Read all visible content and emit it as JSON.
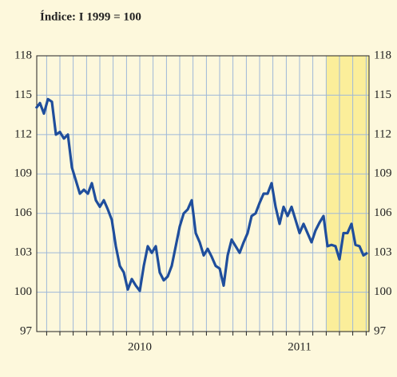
{
  "chart_data": {
    "type": "line",
    "title": "Índice: I 1999 = 100",
    "x": [
      2009.85,
      2009.875,
      2009.9,
      2009.925,
      2009.95,
      2009.975,
      2010.0,
      2010.025,
      2010.05,
      2010.075,
      2010.1,
      2010.125,
      2010.15,
      2010.175,
      2010.2,
      2010.225,
      2010.25,
      2010.275,
      2010.3,
      2010.325,
      2010.35,
      2010.375,
      2010.4,
      2010.425,
      2010.45,
      2010.475,
      2010.5,
      2010.525,
      2010.55,
      2010.575,
      2010.6,
      2010.625,
      2010.65,
      2010.675,
      2010.7,
      2010.725,
      2010.75,
      2010.775,
      2010.8,
      2010.825,
      2010.85,
      2010.875,
      2010.9,
      2010.925,
      2010.95,
      2010.975,
      2011.0,
      2011.025,
      2011.05,
      2011.075,
      2011.1,
      2011.125,
      2011.15,
      2011.175,
      2011.2,
      2011.225,
      2011.25,
      2011.275,
      2011.3,
      2011.325,
      2011.35,
      2011.375,
      2011.4,
      2011.425,
      2011.45,
      2011.475,
      2011.5,
      2011.525,
      2011.55,
      2011.575,
      2011.6,
      2011.625,
      2011.65,
      2011.675,
      2011.7,
      2011.725,
      2011.75,
      2011.775,
      2011.8,
      2011.825,
      2011.85,
      2011.875,
      2011.9,
      2011.925
    ],
    "series": [
      {
        "color": "#1f4e9c",
        "values": [
          114,
          114.4,
          113.6,
          114.7,
          114.5,
          112,
          112.2,
          111.7,
          112,
          109.5,
          108.5,
          107.5,
          107.8,
          107.5,
          108.3,
          107,
          106.5,
          107,
          106.3,
          105.5,
          103.5,
          102,
          101.5,
          100.2,
          101,
          100.5,
          100.1,
          102,
          103.5,
          103,
          103.5,
          101.5,
          100.9,
          101.2,
          102,
          103.5,
          105,
          106,
          106.3,
          107,
          104.5,
          103.8,
          102.8,
          103.3,
          102.7,
          102,
          101.8,
          100.5,
          102.8,
          104,
          103.5,
          103,
          103.8,
          104.5,
          105.8,
          106,
          106.8,
          107.5,
          107.5,
          108.3,
          106.5,
          105.2,
          106.5,
          105.8,
          106.5,
          105.5,
          104.5,
          105.2,
          104.5,
          103.8,
          104.7,
          105.3,
          105.8,
          103.5,
          103.6,
          103.5,
          102.5,
          104.5,
          104.5,
          105.2,
          103.6,
          103.5,
          102.8,
          103
        ]
      }
    ],
    "xlim": [
      2009.855,
      2011.935
    ],
    "xticks": [
      {
        "value": 2010.5,
        "label": "2010"
      },
      {
        "value": 2011.5,
        "label": "2011"
      }
    ],
    "minor_xticks": [
      2009.917,
      2010.0,
      2010.083,
      2010.167,
      2010.25,
      2010.333,
      2010.417,
      2010.5,
      2010.583,
      2010.667,
      2010.75,
      2010.833,
      2010.917,
      2011.0,
      2011.083,
      2011.167,
      2011.25,
      2011.333,
      2011.417,
      2011.5,
      2011.583,
      2011.667,
      2011.75,
      2011.833,
      2011.917
    ],
    "ylim": [
      97,
      118
    ],
    "yticks": [
      97,
      100,
      103,
      106,
      109,
      112,
      115,
      118
    ],
    "highlight": [
      2011.667,
      2011.935
    ],
    "highlight_color": "#fbee9a",
    "grid": true,
    "grid_color": "#9fb8d8"
  }
}
